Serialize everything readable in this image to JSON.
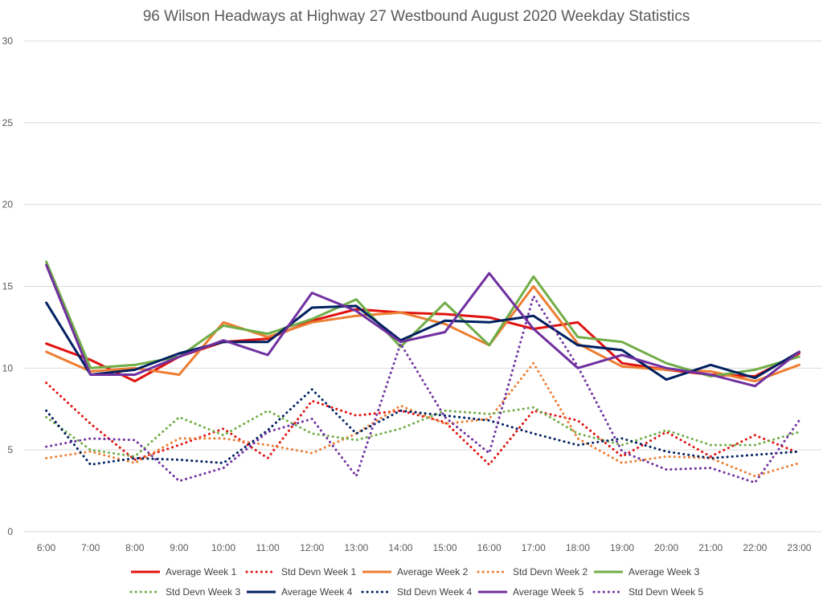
{
  "chart_data": {
    "type": "line",
    "title": "96 Wilson Headways at Highway 27 Westbound August 2020 Weekday Statistics",
    "xlabel": "",
    "ylabel": "",
    "ylim": [
      0,
      30
    ],
    "yticks": [
      0,
      5,
      10,
      15,
      20,
      25,
      30
    ],
    "grid": true,
    "legend_position": "bottom",
    "categories": [
      "6:00",
      "7:00",
      "8:00",
      "9:00",
      "10:00",
      "11:00",
      "12:00",
      "13:00",
      "14:00",
      "15:00",
      "16:00",
      "17:00",
      "18:00",
      "19:00",
      "20:00",
      "21:00",
      "22:00",
      "23:00"
    ],
    "series": [
      {
        "name": "Average Week 1",
        "color": "#e0120f",
        "style": "solid",
        "values": [
          11.5,
          10.5,
          9.2,
          10.7,
          11.6,
          11.8,
          12.9,
          13.6,
          13.4,
          13.3,
          13.1,
          12.4,
          12.8,
          10.3,
          9.9,
          9.6,
          9.5,
          10.9
        ]
      },
      {
        "name": "Std Devn Week 1",
        "color": "#e0120f",
        "style": "dotted",
        "values": [
          9.1,
          6.6,
          4.4,
          5.3,
          6.3,
          4.5,
          8.0,
          7.1,
          7.4,
          6.7,
          4.1,
          7.4,
          6.8,
          4.6,
          6.1,
          4.6,
          5.9,
          4.8
        ]
      },
      {
        "name": "Average Week 2",
        "color": "#ed7d31",
        "style": "solid",
        "values": [
          11.0,
          9.8,
          10.0,
          9.6,
          12.8,
          11.9,
          12.8,
          13.2,
          13.4,
          12.7,
          11.4,
          15.0,
          11.5,
          10.1,
          9.9,
          9.8,
          9.2,
          10.2
        ]
      },
      {
        "name": "Std Devn Week 2",
        "color": "#ed7d31",
        "style": "dotted",
        "values": [
          4.5,
          4.9,
          4.2,
          5.7,
          5.7,
          5.3,
          4.8,
          6.0,
          7.7,
          6.6,
          6.9,
          10.3,
          5.7,
          4.2,
          4.6,
          4.5,
          3.4,
          4.2
        ]
      },
      {
        "name": "Average Week 3",
        "color": "#70ad47",
        "style": "solid",
        "values": [
          16.5,
          10.0,
          10.2,
          10.7,
          12.6,
          12.1,
          13.0,
          14.2,
          11.3,
          14.0,
          11.4,
          15.6,
          11.9,
          11.6,
          10.3,
          9.5,
          9.9,
          10.7
        ]
      },
      {
        "name": "Std Devn Week 3",
        "color": "#70ad47",
        "style": "dotted",
        "values": [
          7.0,
          5.0,
          4.6,
          7.0,
          5.9,
          7.4,
          6.0,
          5.6,
          6.3,
          7.4,
          7.2,
          7.6,
          6.0,
          5.3,
          6.2,
          5.3,
          5.3,
          6.1
        ]
      },
      {
        "name": "Average Week 4",
        "color": "#002060",
        "style": "solid",
        "values": [
          14.0,
          9.6,
          9.9,
          10.9,
          11.6,
          11.6,
          13.7,
          13.8,
          11.7,
          12.9,
          12.8,
          13.2,
          11.4,
          11.1,
          9.3,
          10.2,
          9.4,
          11.0
        ]
      },
      {
        "name": "Std Devn Week 4",
        "color": "#002060",
        "style": "dotted",
        "values": [
          7.4,
          4.1,
          4.5,
          4.4,
          4.2,
          6.2,
          8.7,
          6.0,
          7.4,
          7.1,
          6.8,
          6.0,
          5.3,
          5.7,
          4.9,
          4.5,
          4.7,
          4.9
        ]
      },
      {
        "name": "Average Week 5",
        "color": "#7030a0",
        "style": "solid",
        "values": [
          16.3,
          9.6,
          9.6,
          10.7,
          11.7,
          10.8,
          14.6,
          13.5,
          11.6,
          12.2,
          15.8,
          12.4,
          10.0,
          10.8,
          10.0,
          9.6,
          8.9,
          11.0
        ]
      },
      {
        "name": "Std Devn Week 5",
        "color": "#7030a0",
        "style": "dotted",
        "values": [
          5.2,
          5.7,
          5.6,
          3.1,
          3.9,
          6.1,
          6.9,
          3.4,
          11.5,
          7.0,
          4.8,
          14.4,
          10.1,
          4.9,
          3.8,
          3.9,
          3.0,
          6.8
        ]
      }
    ]
  }
}
